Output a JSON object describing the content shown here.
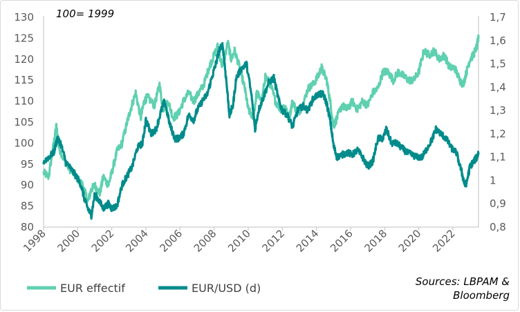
{
  "chart_data": {
    "type": "line",
    "note": "100= 1999",
    "source_lines": [
      "Sources: LBPAM &",
      "Bloomberg"
    ],
    "x_ticks": [
      "1998",
      "2000",
      "2002",
      "2004",
      "2006",
      "2008",
      "2010",
      "2012",
      "2014",
      "2016",
      "2018",
      "2020",
      "2022"
    ],
    "xlim": [
      1998,
      2023.5
    ],
    "y_left": {
      "lim": [
        80,
        130
      ],
      "ticks": [
        "80",
        "85",
        "90",
        "95",
        "100",
        "105",
        "110",
        "115",
        "120",
        "125",
        "130"
      ]
    },
    "y_right": {
      "lim": [
        0.8,
        1.7
      ],
      "ticks": [
        "0,8",
        "0,9",
        "1",
        "1,1",
        "1,2",
        "1,3",
        "1,4",
        "1,5",
        "1,6",
        "1,7"
      ]
    },
    "grid": false,
    "legend_position": "bottom-left",
    "series": [
      {
        "name": "EUR effectif",
        "axis": "left",
        "color": "#5fd0b0",
        "x": [
          1998.0,
          1998.3,
          1998.6,
          1998.75,
          1998.9,
          1999.2,
          1999.5,
          1999.9,
          2000.3,
          2000.6,
          2000.8,
          2001.0,
          2001.3,
          2001.5,
          2001.8,
          2002.0,
          2002.3,
          2002.6,
          2002.9,
          2003.1,
          2003.4,
          2003.7,
          2003.9,
          2004.1,
          2004.5,
          2004.8,
          2005.0,
          2005.3,
          2005.6,
          2005.9,
          2006.2,
          2006.5,
          2006.8,
          2007.1,
          2007.4,
          2007.7,
          2007.9,
          2008.2,
          2008.5,
          2008.8,
          2009.0,
          2009.2,
          2009.5,
          2009.8,
          2010.0,
          2010.3,
          2010.5,
          2010.8,
          2011.0,
          2011.3,
          2011.6,
          2011.9,
          2012.1,
          2012.4,
          2012.6,
          2012.9,
          2013.2,
          2013.5,
          2013.8,
          2014.1,
          2014.3,
          2014.6,
          2014.8,
          2015.0,
          2015.2,
          2015.5,
          2015.8,
          2016.1,
          2016.4,
          2016.7,
          2017.0,
          2017.3,
          2017.6,
          2017.9,
          2018.2,
          2018.5,
          2018.8,
          2019.1,
          2019.4,
          2019.7,
          2020.0,
          2020.3,
          2020.6,
          2020.9,
          2021.2,
          2021.5,
          2021.8,
          2022.1,
          2022.4,
          2022.6,
          2022.8,
          2023.0,
          2023.2,
          2023.4,
          2023.5
        ],
        "values": [
          93,
          92,
          100,
          104,
          99,
          96,
          94,
          92,
          90,
          86,
          89,
          90,
          88,
          92,
          90,
          93,
          98,
          100,
          105,
          108,
          112,
          106,
          110,
          111,
          109,
          114,
          108,
          110,
          106,
          107,
          110,
          112,
          110,
          112,
          114,
          118,
          120,
          123,
          118,
          124,
          120,
          122,
          118,
          113,
          108,
          106,
          112,
          110,
          116,
          114,
          110,
          108,
          109,
          106,
          110,
          107,
          109,
          113,
          114,
          116,
          118,
          115,
          110,
          104,
          106,
          109,
          108,
          110,
          108,
          110,
          109,
          112,
          113,
          117,
          117,
          115,
          117,
          116,
          115,
          115,
          117,
          122,
          121,
          122,
          120,
          121,
          118,
          118,
          115,
          114,
          117,
          120,
          121,
          123,
          125
        ]
      },
      {
        "name": "EUR/USD (d)",
        "axis": "right",
        "color": "#008b8b",
        "x": [
          1998.0,
          1998.3,
          1998.6,
          1998.8,
          1999.0,
          1999.3,
          1999.6,
          1999.9,
          2000.2,
          2000.4,
          2000.6,
          2000.8,
          2001.0,
          2001.2,
          2001.5,
          2001.8,
          2002.0,
          2002.3,
          2002.6,
          2002.9,
          2003.2,
          2003.5,
          2003.8,
          2004.0,
          2004.3,
          2004.6,
          2004.9,
          2005.1,
          2005.4,
          2005.7,
          2005.9,
          2006.2,
          2006.5,
          2006.8,
          2007.0,
          2007.3,
          2007.6,
          2007.9,
          2008.1,
          2008.3,
          2008.5,
          2008.7,
          2008.9,
          2009.1,
          2009.3,
          2009.6,
          2009.9,
          2010.2,
          2010.4,
          2010.6,
          2010.9,
          2011.2,
          2011.5,
          2011.8,
          2012.0,
          2012.3,
          2012.6,
          2012.9,
          2013.2,
          2013.5,
          2013.8,
          2014.1,
          2014.4,
          2014.6,
          2014.8,
          2015.0,
          2015.2,
          2015.5,
          2015.8,
          2016.1,
          2016.4,
          2016.7,
          2017.0,
          2017.3,
          2017.6,
          2017.9,
          2018.1,
          2018.4,
          2018.7,
          2019.0,
          2019.3,
          2019.6,
          2019.9,
          2020.2,
          2020.5,
          2020.8,
          2021.0,
          2021.3,
          2021.6,
          2021.9,
          2022.2,
          2022.5,
          2022.7,
          2022.8,
          2023.0,
          2023.2,
          2023.4,
          2023.5
        ],
        "values": [
          1.08,
          1.1,
          1.12,
          1.18,
          1.16,
          1.08,
          1.05,
          1.02,
          0.98,
          0.92,
          0.88,
          0.85,
          0.94,
          0.92,
          0.88,
          0.9,
          0.88,
          0.89,
          0.98,
          1.02,
          1.06,
          1.14,
          1.16,
          1.26,
          1.2,
          1.22,
          1.3,
          1.34,
          1.24,
          1.18,
          1.18,
          1.2,
          1.28,
          1.26,
          1.3,
          1.34,
          1.37,
          1.45,
          1.5,
          1.56,
          1.58,
          1.44,
          1.28,
          1.32,
          1.44,
          1.48,
          1.5,
          1.36,
          1.22,
          1.3,
          1.36,
          1.42,
          1.44,
          1.34,
          1.3,
          1.28,
          1.23,
          1.3,
          1.32,
          1.3,
          1.35,
          1.37,
          1.37,
          1.33,
          1.26,
          1.15,
          1.1,
          1.11,
          1.12,
          1.11,
          1.13,
          1.1,
          1.06,
          1.08,
          1.18,
          1.18,
          1.22,
          1.16,
          1.16,
          1.14,
          1.12,
          1.11,
          1.1,
          1.1,
          1.14,
          1.18,
          1.22,
          1.2,
          1.18,
          1.14,
          1.12,
          1.04,
          0.98,
          0.99,
          1.06,
          1.08,
          1.1,
          1.12
        ]
      }
    ]
  }
}
